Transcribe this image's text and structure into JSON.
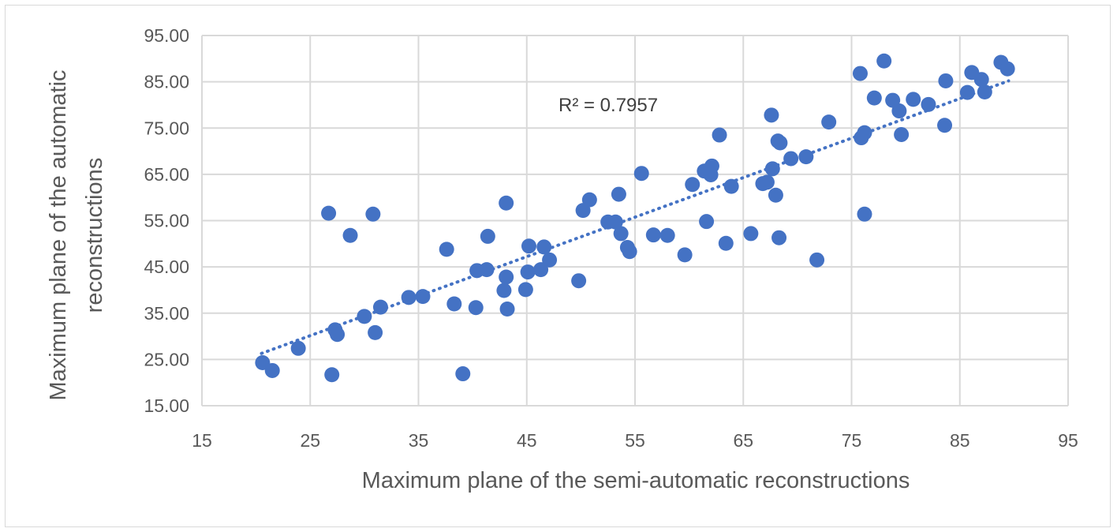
{
  "chart_data": {
    "type": "scatter",
    "title": "",
    "xlabel": "Maximum plane of the semi-automatic reconstructions",
    "ylabel_lines": [
      "Maximum plane of the automatic",
      "reconstructions"
    ],
    "xlim": [
      15,
      95
    ],
    "ylim": [
      15,
      95
    ],
    "x_ticks": [
      "15",
      "25",
      "35",
      "45",
      "55",
      "65",
      "75",
      "85",
      "95"
    ],
    "y_ticks": [
      "95.00",
      "85.00",
      "75.00",
      "65.00",
      "55.00",
      "45.00",
      "35.00",
      "25.00",
      "15.00"
    ],
    "grid": true,
    "legend": "none",
    "colors": {
      "marker": "#4472C4",
      "trendline": "#4472C4",
      "grid": "#d9d9d9"
    },
    "trendline": {
      "type": "linear",
      "x": [
        20.5,
        89.5
      ],
      "y": [
        26.3,
        85.2
      ],
      "style": "dotted"
    },
    "annotation": "R² = 0.7957",
    "points": [
      [
        20.6,
        24.3
      ],
      [
        21.5,
        22.6
      ],
      [
        23.9,
        27.4
      ],
      [
        26.7,
        56.6
      ],
      [
        27.0,
        21.7
      ],
      [
        27.3,
        31.4
      ],
      [
        27.5,
        30.4
      ],
      [
        28.7,
        51.8
      ],
      [
        30.0,
        34.3
      ],
      [
        30.8,
        56.4
      ],
      [
        31.0,
        30.8
      ],
      [
        31.5,
        36.3
      ],
      [
        34.1,
        38.4
      ],
      [
        35.4,
        38.6
      ],
      [
        37.6,
        48.8
      ],
      [
        38.3,
        37.0
      ],
      [
        39.1,
        21.9
      ],
      [
        40.3,
        36.2
      ],
      [
        40.4,
        44.2
      ],
      [
        41.3,
        44.4
      ],
      [
        41.4,
        51.6
      ],
      [
        42.9,
        39.9
      ],
      [
        43.1,
        42.8
      ],
      [
        43.1,
        58.8
      ],
      [
        43.2,
        35.9
      ],
      [
        44.9,
        40.1
      ],
      [
        45.1,
        43.9
      ],
      [
        45.2,
        49.5
      ],
      [
        46.3,
        44.4
      ],
      [
        46.6,
        49.3
      ],
      [
        47.1,
        46.5
      ],
      [
        49.8,
        42.0
      ],
      [
        50.2,
        57.2
      ],
      [
        50.8,
        59.5
      ],
      [
        52.5,
        54.7
      ],
      [
        53.2,
        54.7
      ],
      [
        53.5,
        60.7
      ],
      [
        53.7,
        52.2
      ],
      [
        54.3,
        49.2
      ],
      [
        54.5,
        48.3
      ],
      [
        55.6,
        65.2
      ],
      [
        56.7,
        51.9
      ],
      [
        58.0,
        51.8
      ],
      [
        59.6,
        47.6
      ],
      [
        60.3,
        62.8
      ],
      [
        61.4,
        65.7
      ],
      [
        61.6,
        54.8
      ],
      [
        62.0,
        64.9
      ],
      [
        62.1,
        66.8
      ],
      [
        62.8,
        73.5
      ],
      [
        63.4,
        50.1
      ],
      [
        63.9,
        62.4
      ],
      [
        65.7,
        52.2
      ],
      [
        66.8,
        63.0
      ],
      [
        67.2,
        63.3
      ],
      [
        67.6,
        77.8
      ],
      [
        67.7,
        66.2
      ],
      [
        68.0,
        60.5
      ],
      [
        68.2,
        72.2
      ],
      [
        68.3,
        51.3
      ],
      [
        68.4,
        71.8
      ],
      [
        69.4,
        68.4
      ],
      [
        70.8,
        68.8
      ],
      [
        71.8,
        46.5
      ],
      [
        72.9,
        76.3
      ],
      [
        75.8,
        86.8
      ],
      [
        75.9,
        72.9
      ],
      [
        76.2,
        56.4
      ],
      [
        76.2,
        74.0
      ],
      [
        77.1,
        81.5
      ],
      [
        78.0,
        89.5
      ],
      [
        78.8,
        81.0
      ],
      [
        79.4,
        78.7
      ],
      [
        79.6,
        73.6
      ],
      [
        80.7,
        81.2
      ],
      [
        82.1,
        80.1
      ],
      [
        83.6,
        75.6
      ],
      [
        83.7,
        85.2
      ],
      [
        85.7,
        82.7
      ],
      [
        86.1,
        87.0
      ],
      [
        87.0,
        85.5
      ],
      [
        87.3,
        82.8
      ],
      [
        88.8,
        89.2
      ],
      [
        89.4,
        87.8
      ]
    ]
  }
}
